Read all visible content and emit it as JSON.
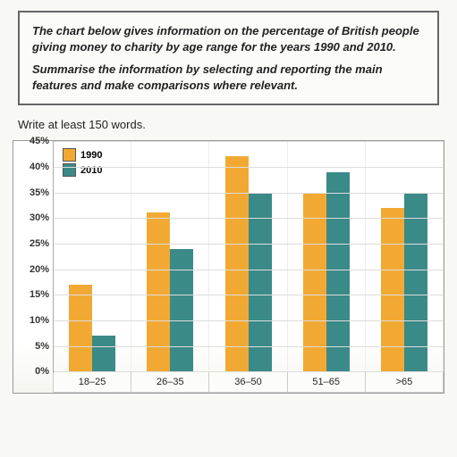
{
  "task": {
    "p1": "The chart below gives information on the percentage of British people giving money to charity by age range for the years 1990 and 2010.",
    "p2": "Summarise the information by selecting and reporting the main features and make comparisons where relevant."
  },
  "instruction": "Write at least 150 words.",
  "chart": {
    "type": "bar",
    "y_max": 45,
    "y_ticks": [
      "45%",
      "40%",
      "35%",
      "30%",
      "25%",
      "20%",
      "15%",
      "10%",
      "5%",
      "0%"
    ],
    "y_values": [
      45,
      40,
      35,
      30,
      25,
      20,
      15,
      10,
      5,
      0
    ],
    "categories": [
      "18–25",
      "26–35",
      "36–50",
      "51–65",
      ">65"
    ],
    "series": [
      {
        "label": "1990",
        "color": "#f2a933",
        "values": [
          17,
          31,
          42,
          35,
          32
        ]
      },
      {
        "label": "2010",
        "color": "#3a8a88",
        "values": [
          7,
          24,
          35,
          39,
          35
        ]
      }
    ],
    "grid_color": "#dddddd",
    "axis_color": "#aaaaaa",
    "label_fontsize": 11,
    "background_color": "#ffffff"
  }
}
